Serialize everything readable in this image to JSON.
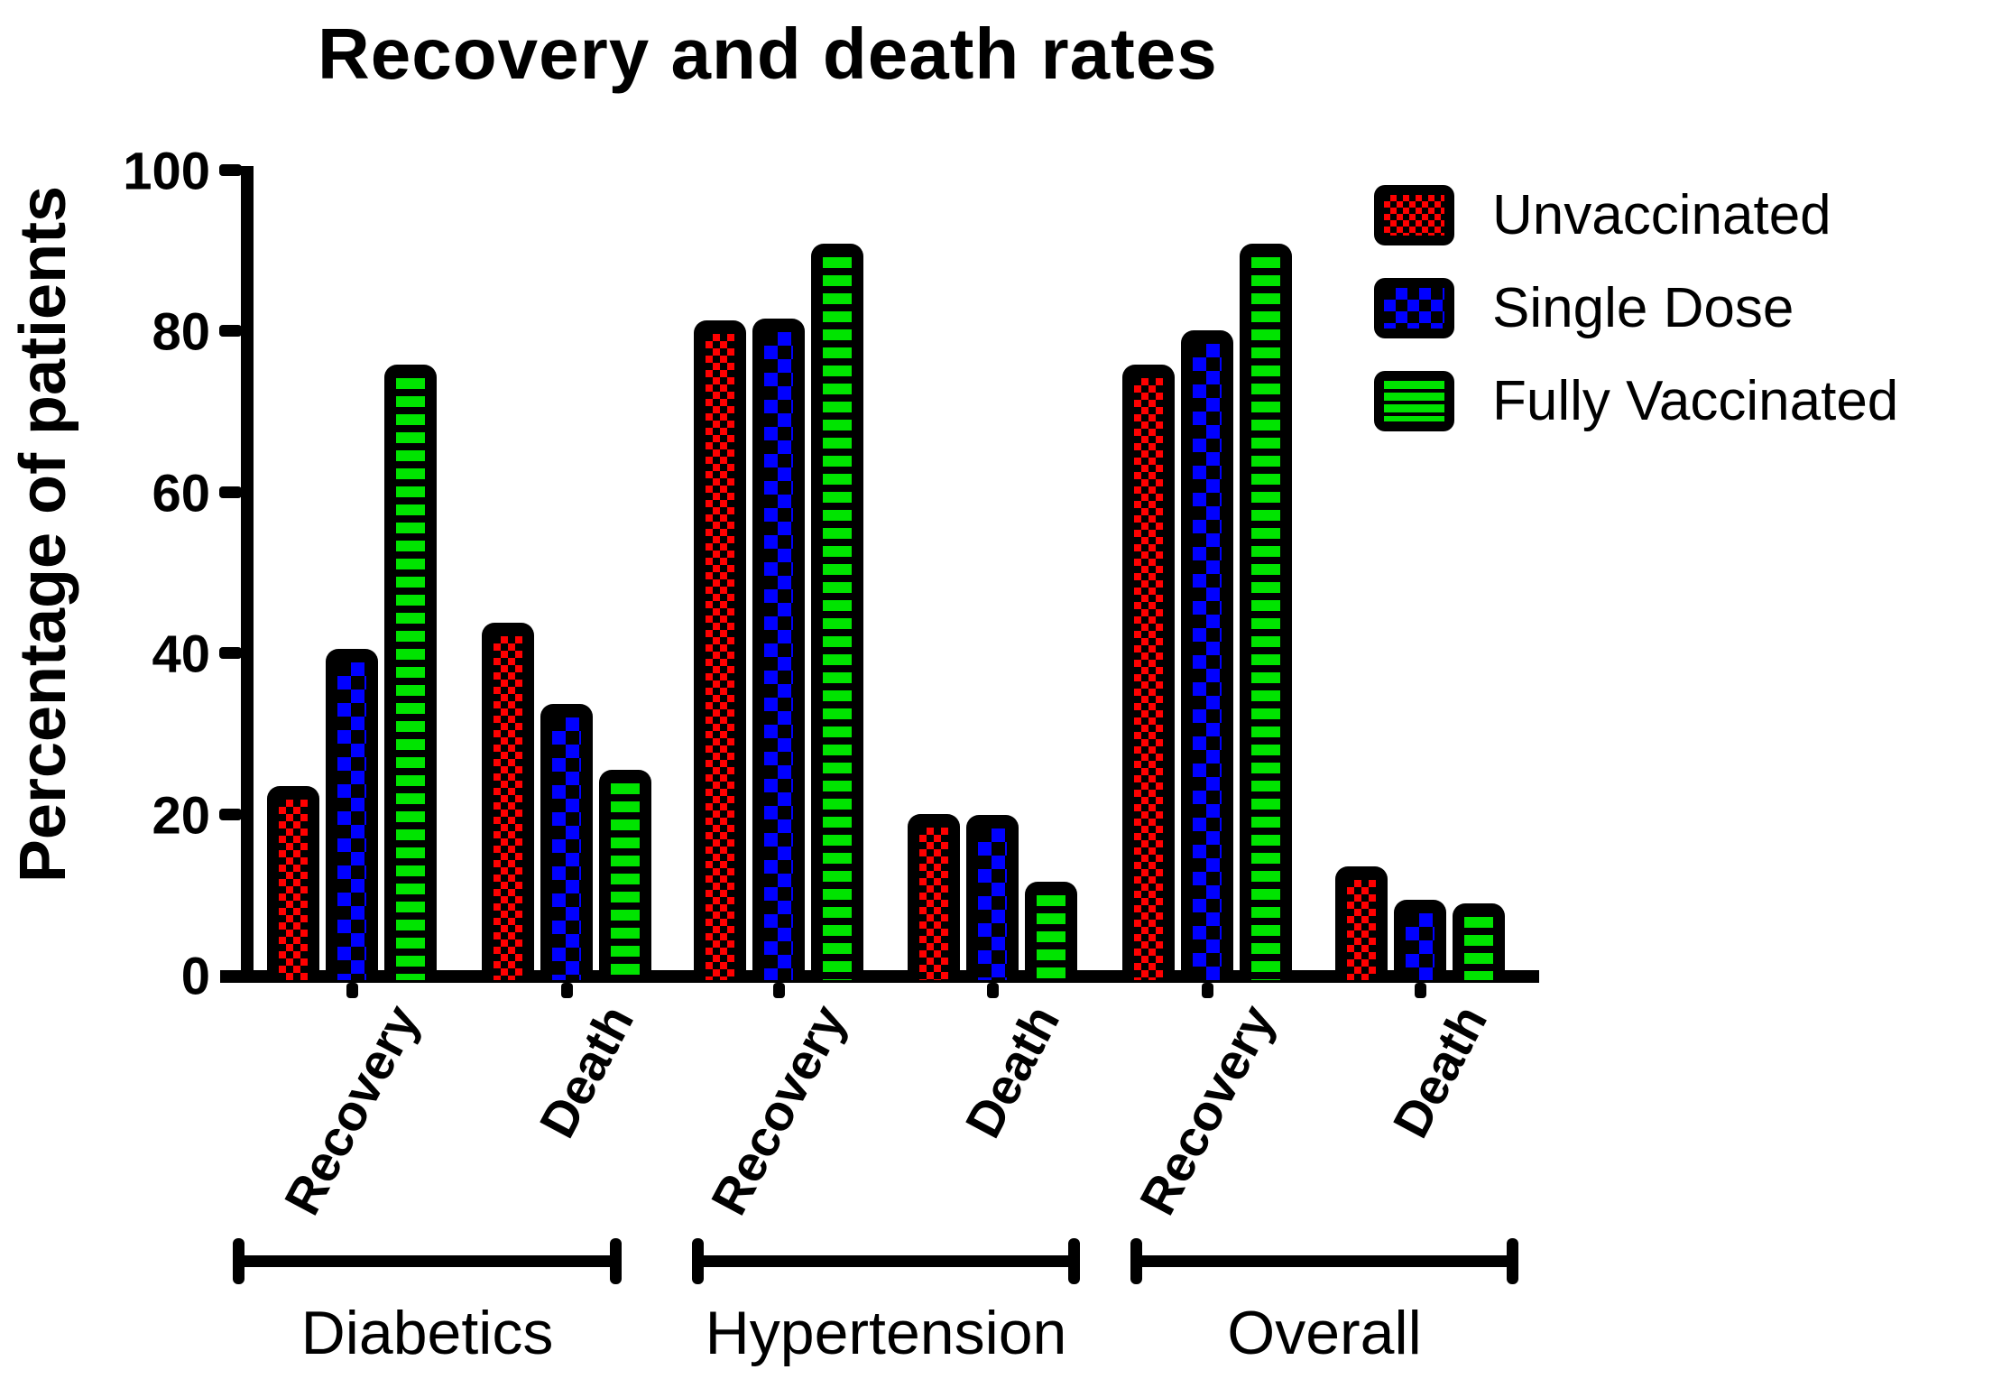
{
  "title": "Recovery and death rates",
  "y_axis": {
    "label": "Percentage of patients",
    "ticks": [
      0,
      20,
      40,
      60,
      80,
      100
    ]
  },
  "chart_data": {
    "type": "bar",
    "title": "Recovery and death rates",
    "ylabel": "Percentage of patients",
    "ylim": [
      0,
      100
    ],
    "yticks": [
      0,
      20,
      40,
      60,
      80,
      100
    ],
    "grid": false,
    "legend_position": "top-right",
    "groups": [
      "Diabetics",
      "Hypertension",
      "Overall"
    ],
    "x_labels": [
      "Recovery",
      "Death",
      "Recovery",
      "Death",
      "Recovery",
      "Death"
    ],
    "series": [
      {
        "name": "Unvaccinated",
        "color": "#ff0000",
        "pattern": "fine-checker",
        "values": [
          23.4,
          43.7,
          81.3,
          20.0,
          75.8,
          13.4
        ]
      },
      {
        "name": "Single Dose",
        "color": "#0000ff",
        "pattern": "coarse-checker",
        "values": [
          40.5,
          33.6,
          81.5,
          19.8,
          80.0,
          9.3
        ]
      },
      {
        "name": "Fully Vaccinated",
        "color": "#00e400",
        "pattern": "horizontal-stripes",
        "values": [
          75.8,
          25.5,
          90.8,
          11.6,
          90.8,
          8.9
        ]
      }
    ]
  }
}
